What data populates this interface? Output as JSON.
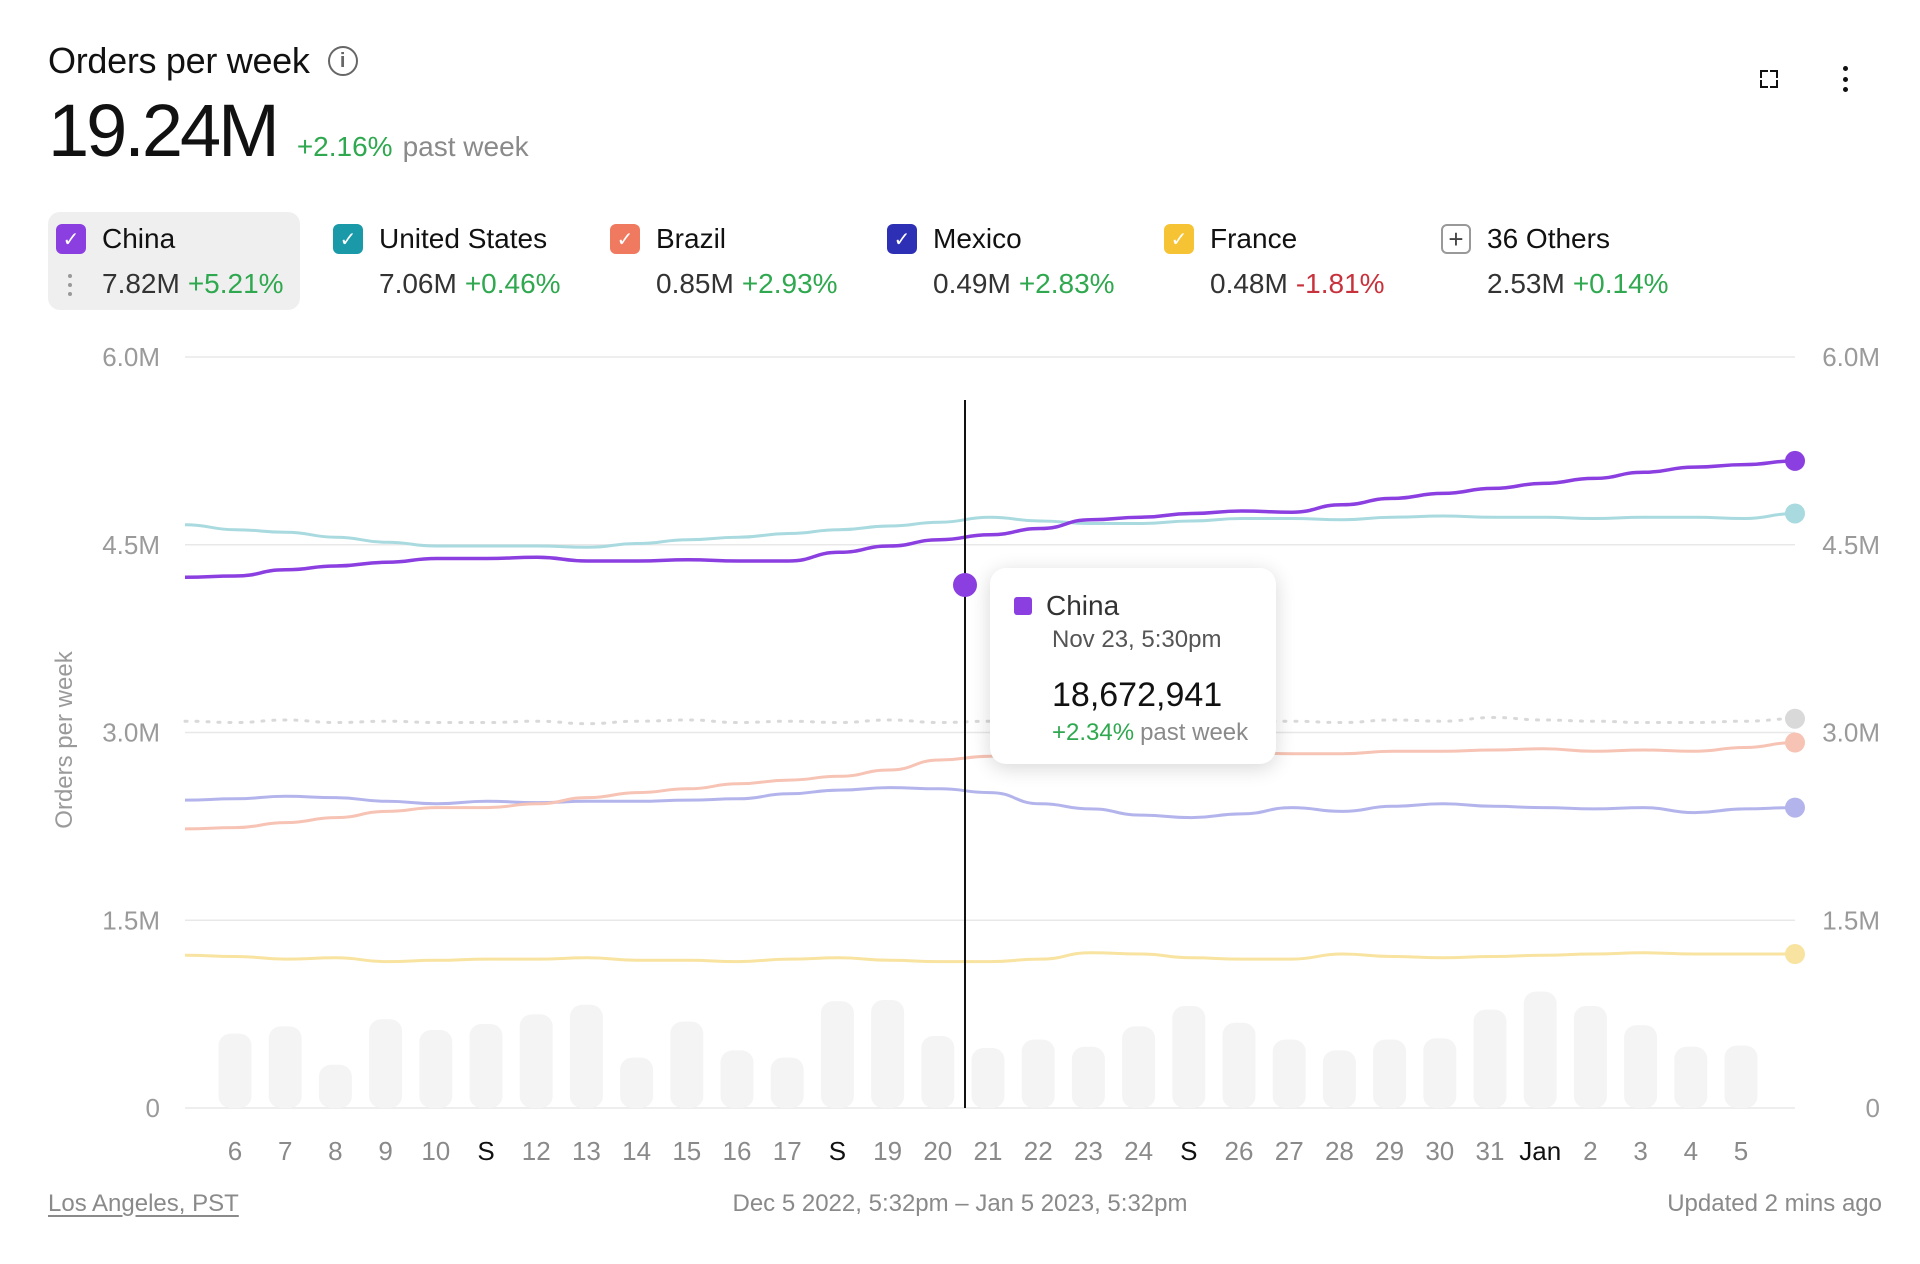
{
  "header": {
    "title": "Orders per week",
    "total_value": "19.24M",
    "total_change": "+2.16%",
    "period_label": "past week"
  },
  "icons": {
    "info": "info-icon",
    "expand": "expand-icon",
    "more": "more-vertical-icon",
    "drag": "drag-handle-icon",
    "add": "plus-icon"
  },
  "legend": [
    {
      "name": "China",
      "value": "7.82M",
      "change": "+5.21%",
      "color": "#8b3fe0",
      "checked": true
    },
    {
      "name": "United States",
      "value": "7.06M",
      "change": "+0.46%",
      "color": "#1a9aa8",
      "checked": true
    },
    {
      "name": "Brazil",
      "value": "0.85M",
      "change": "+2.93%",
      "color": "#f07a5f",
      "checked": true
    },
    {
      "name": "Mexico",
      "value": "0.49M",
      "change": "+2.83%",
      "color": "#2d2fb5",
      "checked": true
    },
    {
      "name": "France",
      "value": "0.48M",
      "change": "-1.81%",
      "color": "#f5c334",
      "checked": true
    },
    {
      "name": "36 Others",
      "value": "2.53M",
      "change": "+0.14%",
      "color": "#bdbdbd",
      "checked": false
    }
  ],
  "tooltip": {
    "series": "China",
    "date": "Nov 23, 5:30pm",
    "value": "18,672,941",
    "change": "+2.34%",
    "period_label": "past week",
    "color": "#8b3fe0"
  },
  "footer": {
    "timezone": "Los Angeles, PST",
    "range": "Dec 5 2022, 5:32pm – Jan 5 2023, 5:32pm",
    "updated": "Updated 2 mins ago"
  },
  "chart_data": {
    "type": "line",
    "ylabel": "Orders per week",
    "ylim": [
      0,
      6000000
    ],
    "y_ticks": [
      "0",
      "1.5M",
      "3.0M",
      "4.5M",
      "6.0M"
    ],
    "y_tick_values": [
      0,
      1500000,
      3000000,
      4500000,
      6000000
    ],
    "x_tick_labels": [
      "6",
      "7",
      "8",
      "9",
      "10",
      "S",
      "12",
      "13",
      "14",
      "15",
      "16",
      "17",
      "S",
      "19",
      "20",
      "21",
      "22",
      "23",
      "24",
      "S",
      "26",
      "27",
      "28",
      "29",
      "30",
      "31",
      "Jan",
      "2",
      "3",
      "4",
      "5"
    ],
    "x_tick_bold": [
      5,
      12,
      19,
      26
    ],
    "hover_index": 15,
    "series": [
      {
        "name": "China",
        "color": "#8b3fe0",
        "values": [
          4.24,
          4.25,
          4.3,
          4.33,
          4.36,
          4.39,
          4.39,
          4.4,
          4.37,
          4.37,
          4.38,
          4.37,
          4.37,
          4.44,
          4.49,
          4.54,
          4.58,
          4.63,
          4.7,
          4.72,
          4.75,
          4.77,
          4.76,
          4.82,
          4.87,
          4.91,
          4.95,
          4.99,
          5.03,
          5.08,
          5.12,
          5.14,
          5.17
        ]
      },
      {
        "name": "United States",
        "color": "#a9dadf",
        "values": [
          4.66,
          4.62,
          4.6,
          4.56,
          4.52,
          4.49,
          4.49,
          4.49,
          4.48,
          4.51,
          4.54,
          4.56,
          4.59,
          4.62,
          4.65,
          4.68,
          4.72,
          4.69,
          4.67,
          4.67,
          4.69,
          4.71,
          4.71,
          4.7,
          4.72,
          4.73,
          4.72,
          4.72,
          4.71,
          4.72,
          4.72,
          4.71,
          4.75
        ]
      },
      {
        "name": "36 Others",
        "color": "#d9d9d9",
        "dashed": true,
        "values": [
          3.09,
          3.08,
          3.1,
          3.08,
          3.09,
          3.08,
          3.08,
          3.09,
          3.07,
          3.09,
          3.1,
          3.08,
          3.09,
          3.08,
          3.1,
          3.08,
          3.09,
          3.07,
          3.09,
          3.08,
          3.09,
          3.08,
          3.09,
          3.08,
          3.1,
          3.09,
          3.12,
          3.1,
          3.09,
          3.08,
          3.08,
          3.09,
          3.11
        ]
      },
      {
        "name": "Brazil",
        "color": "#f6c3b4",
        "values": [
          2.23,
          2.24,
          2.28,
          2.32,
          2.37,
          2.4,
          2.4,
          2.43,
          2.48,
          2.52,
          2.55,
          2.59,
          2.62,
          2.65,
          2.7,
          2.78,
          2.81,
          2.83,
          2.83,
          2.84,
          2.83,
          2.84,
          2.83,
          2.83,
          2.85,
          2.85,
          2.86,
          2.87,
          2.85,
          2.86,
          2.85,
          2.88,
          2.92
        ]
      },
      {
        "name": "Mexico",
        "color": "#b4b4ec",
        "values": [
          2.46,
          2.47,
          2.49,
          2.48,
          2.45,
          2.43,
          2.45,
          2.44,
          2.45,
          2.45,
          2.46,
          2.47,
          2.51,
          2.54,
          2.56,
          2.55,
          2.52,
          2.43,
          2.39,
          2.34,
          2.32,
          2.35,
          2.4,
          2.37,
          2.41,
          2.43,
          2.41,
          2.4,
          2.39,
          2.4,
          2.36,
          2.39,
          2.4
        ]
      },
      {
        "name": "France",
        "color": "#f8e3a0",
        "values": [
          1.22,
          1.21,
          1.19,
          1.2,
          1.17,
          1.18,
          1.19,
          1.19,
          1.2,
          1.18,
          1.18,
          1.17,
          1.19,
          1.2,
          1.18,
          1.17,
          1.17,
          1.19,
          1.24,
          1.23,
          1.2,
          1.19,
          1.19,
          1.23,
          1.21,
          1.2,
          1.21,
          1.22,
          1.23,
          1.24,
          1.23,
          1.23,
          1.23
        ]
      }
    ],
    "volume_bars": [
      0.62,
      0.68,
      0.36,
      0.74,
      0.65,
      0.7,
      0.78,
      0.86,
      0.42,
      0.72,
      0.48,
      0.42,
      0.89,
      0.9,
      0.6,
      0.5,
      0.57,
      0.51,
      0.68,
      0.85,
      0.71,
      0.57,
      0.48,
      0.57,
      0.58,
      0.82,
      0.97,
      0.85,
      0.69,
      0.51,
      0.52
    ],
    "grid": true
  }
}
